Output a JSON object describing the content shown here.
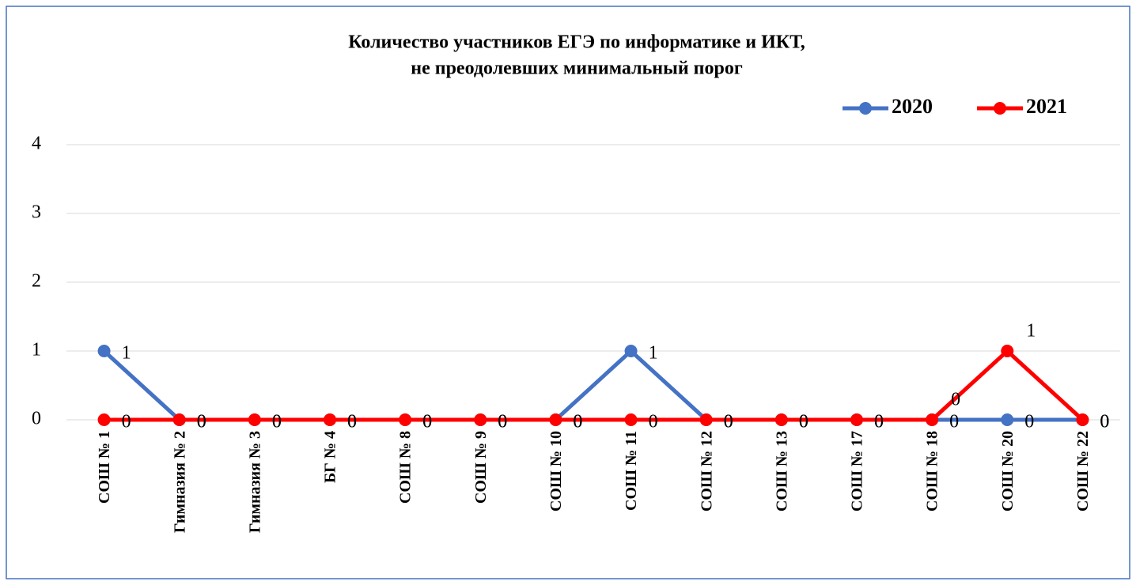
{
  "chart_data": {
    "type": "line",
    "title": [
      "Количество участников ЕГЭ по информатике и ИКТ,",
      "не преодолевших минимальный порог"
    ],
    "categories": [
      "СОШ № 1",
      "Гимназия № 2",
      "Гимназия № 3",
      "БГ № 4",
      "СОШ № 8",
      "СОШ № 9",
      "СОШ № 10",
      "СОШ № 11",
      "СОШ № 12",
      "СОШ № 13",
      "СОШ № 17",
      "СОШ № 18",
      "СОШ № 20",
      "СОШ № 22"
    ],
    "series": [
      {
        "name": "2020",
        "color": "#4472c4",
        "values": [
          1,
          0,
          0,
          0,
          0,
          0,
          0,
          1,
          0,
          0,
          0,
          0,
          0,
          0
        ]
      },
      {
        "name": "2021",
        "color": "#ff0000",
        "values": [
          0,
          0,
          0,
          0,
          0,
          0,
          0,
          0,
          0,
          0,
          0,
          0,
          1,
          0
        ]
      }
    ],
    "ylim": [
      0,
      4
    ],
    "yticks": [
      0,
      1,
      2,
      3,
      4
    ],
    "grid": true,
    "legend": "top-right"
  }
}
